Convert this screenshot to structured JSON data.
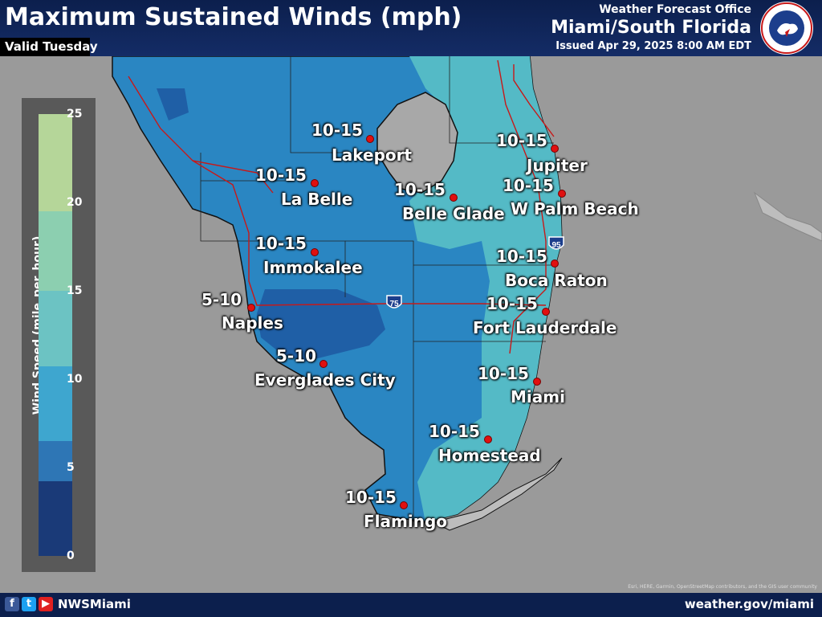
{
  "header": {
    "title": "Maximum Sustained Winds (mph)",
    "valid": "Valid Tuesday",
    "office_label": "Weather Forecast Office",
    "office_name": "Miami/South Florida",
    "issued": "Issued Apr 29, 2025 8:00 AM EDT",
    "logo_text": "NATIONAL WEATHER SERVICE"
  },
  "legend": {
    "title": "Wind Speed (mile_per_hour)",
    "ticks": [
      "25",
      "20",
      "15",
      "10",
      "5",
      "0"
    ],
    "colors": [
      "#b5d699",
      "#8ccfb0",
      "#6cc3c3",
      "#3ea6cf",
      "#2e76b5",
      "#234f97",
      "#1a3a78"
    ]
  },
  "cities": [
    {
      "name": "Lakeport",
      "range": "10-15"
    },
    {
      "name": "La Belle",
      "range": "10-15"
    },
    {
      "name": "Belle Glade",
      "range": "10-15"
    },
    {
      "name": "Jupiter",
      "range": "10-15"
    },
    {
      "name": "W Palm Beach",
      "range": "10-15"
    },
    {
      "name": "Immokalee",
      "range": "10-15"
    },
    {
      "name": "Boca Raton",
      "range": "10-15"
    },
    {
      "name": "Naples",
      "range": "5-10"
    },
    {
      "name": "Fort Lauderdale",
      "range": "10-15"
    },
    {
      "name": "Everglades City",
      "range": "5-10"
    },
    {
      "name": "Miami",
      "range": "10-15"
    },
    {
      "name": "Homestead",
      "range": "10-15"
    },
    {
      "name": "Flamingo",
      "range": "10-15"
    }
  ],
  "highways": {
    "i75": "75",
    "i95": "95"
  },
  "attribution": "Esri, HERE, Garmin, OpenStreetMap contributors, and the GIS user community",
  "footer": {
    "handle": "NWSMiami",
    "site": "weather.gov/miami",
    "icons": [
      "facebook-icon",
      "twitter-icon",
      "youtube-icon"
    ]
  }
}
